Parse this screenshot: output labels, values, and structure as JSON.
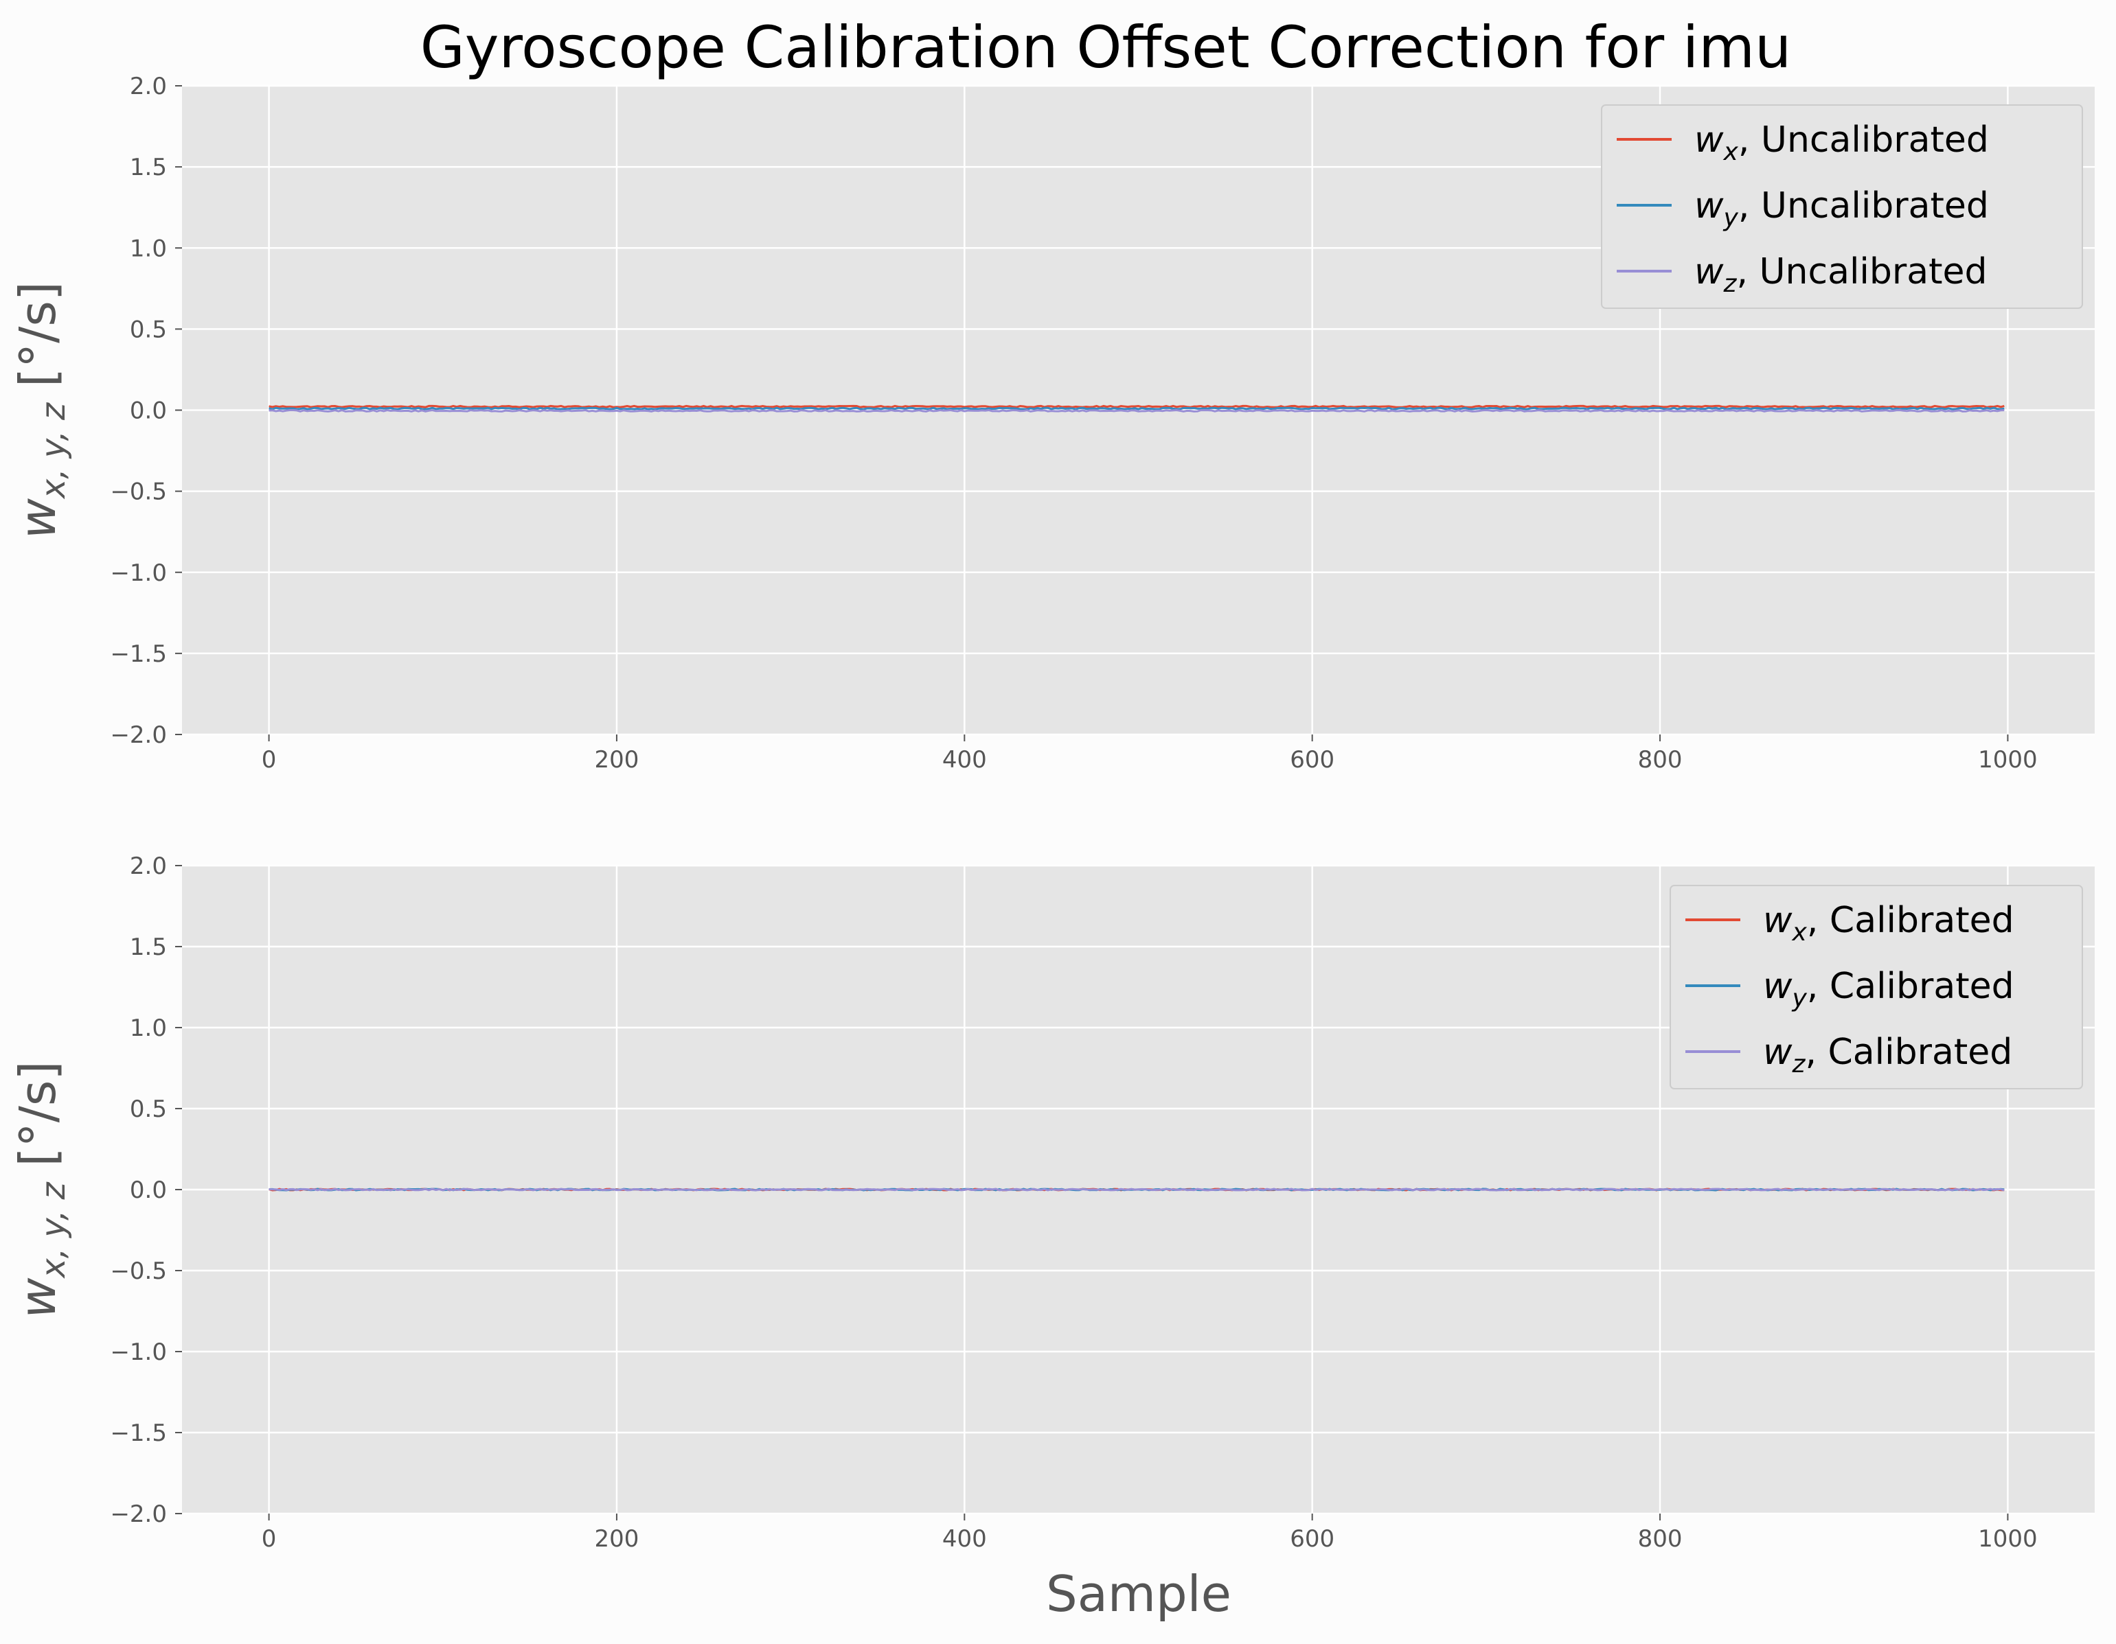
{
  "chart_data": [
    {
      "type": "line",
      "title": "Gyroscope Calibration Offset Correction for imu",
      "ylabel": {
        "main": "w",
        "sub": "x, y, z",
        "unit": " [°/s]"
      },
      "xlabel": "",
      "xlim": [
        -50,
        1050
      ],
      "ylim": [
        -2.0,
        2.0
      ],
      "xticks": [
        "0",
        "200",
        "400",
        "600",
        "800",
        "1000"
      ],
      "yticks": [
        "−2.0",
        "−1.5",
        "−1.0",
        "−0.5",
        "0.0",
        "0.5",
        "1.0",
        "1.5",
        "2.0"
      ],
      "grid": true,
      "legend_position": "top-right",
      "x_range": [
        0,
        999
      ],
      "series": [
        {
          "name": "w_x, Uncalibrated",
          "legend": {
            "base": "w",
            "sub": "x",
            "suffix": ", Uncalibrated"
          },
          "color": "#E24A33",
          "mean": 0.022,
          "noise": 0.004
        },
        {
          "name": "w_y, Uncalibrated",
          "legend": {
            "base": "w",
            "sub": "y",
            "suffix": ", Uncalibrated"
          },
          "color": "#348ABD",
          "mean": 0.01,
          "noise": 0.004
        },
        {
          "name": "w_z, Uncalibrated",
          "legend": {
            "base": "w",
            "sub": "z",
            "suffix": ", Uncalibrated"
          },
          "color": "#988ED5",
          "mean": -0.004,
          "noise": 0.004
        }
      ]
    },
    {
      "type": "line",
      "title": "",
      "ylabel": {
        "main": "w",
        "sub": "x, y, z",
        "unit": " [°/s]"
      },
      "xlabel": "Sample",
      "xlim": [
        -50,
        1050
      ],
      "ylim": [
        -2.0,
        2.0
      ],
      "xticks": [
        "0",
        "200",
        "400",
        "600",
        "800",
        "1000"
      ],
      "yticks": [
        "−2.0",
        "−1.5",
        "−1.0",
        "−0.5",
        "0.0",
        "0.5",
        "1.0",
        "1.5",
        "2.0"
      ],
      "grid": true,
      "legend_position": "top-right",
      "x_range": [
        0,
        999
      ],
      "series": [
        {
          "name": "w_x, Calibrated",
          "legend": {
            "base": "w",
            "sub": "x",
            "suffix": ", Calibrated"
          },
          "color": "#E24A33",
          "mean": 0.0,
          "noise": 0.004
        },
        {
          "name": "w_y, Calibrated",
          "legend": {
            "base": "w",
            "sub": "y",
            "suffix": ", Calibrated"
          },
          "color": "#348ABD",
          "mean": 0.0,
          "noise": 0.004
        },
        {
          "name": "w_z, Calibrated",
          "legend": {
            "base": "w",
            "sub": "z",
            "suffix": ", Calibrated"
          },
          "color": "#988ED5",
          "mean": 0.0,
          "noise": 0.004
        }
      ]
    }
  ]
}
